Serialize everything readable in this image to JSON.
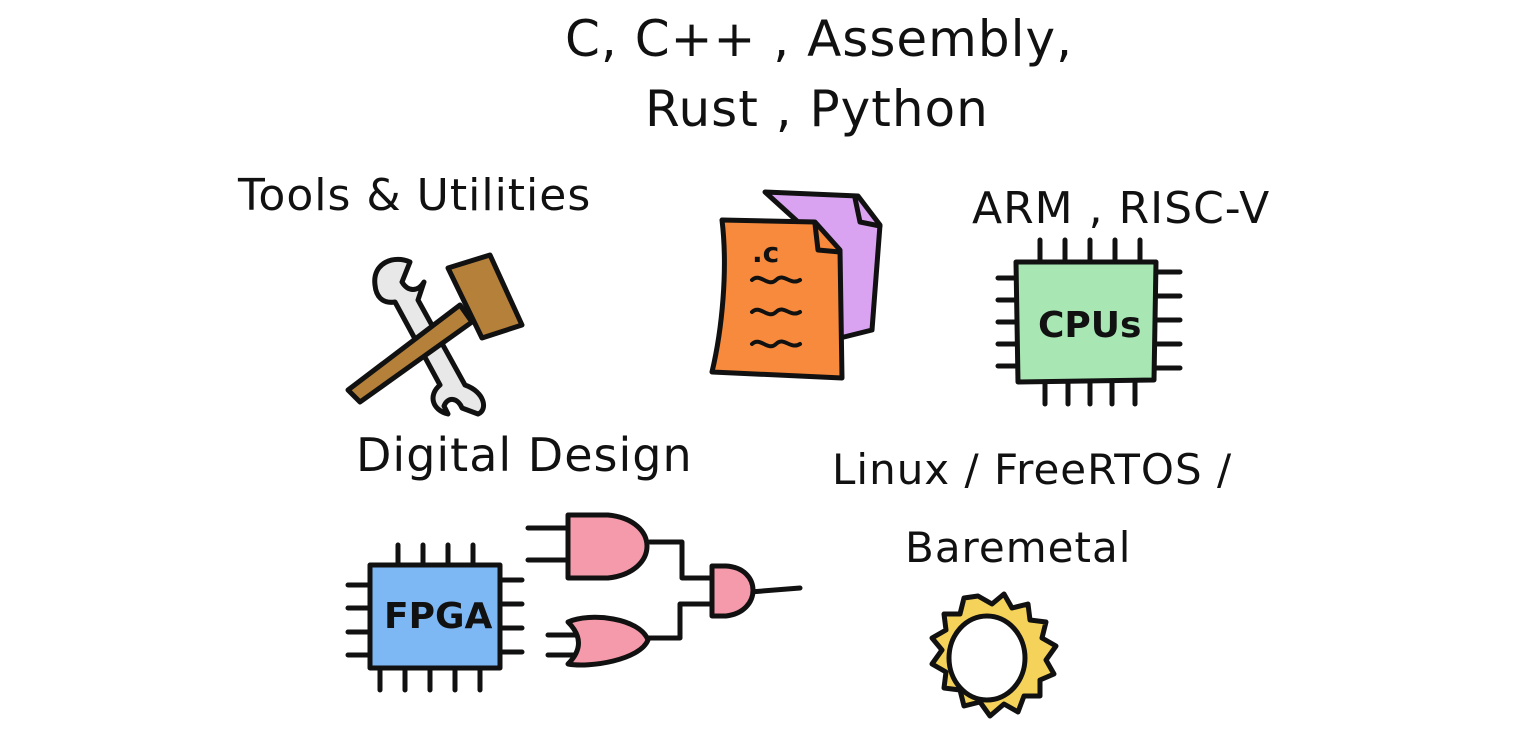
{
  "labels": {
    "languages_line1": "C, C++ , Assembly,",
    "languages_line2": "Rust , Python",
    "tools": "Tools & Utilities",
    "architectures": "ARM , RISC-V",
    "digital_design": "Digital Design",
    "os_line1": "Linux / FreeRTOS /",
    "os_line2": "Baremetal"
  },
  "icons": {
    "tools": "hammer-wrench-icon",
    "source_files": "source-files-icon",
    "source_file_ext": ".c",
    "cpu": "cpu-chip-icon",
    "cpu_label": "CPUs",
    "fpga": "fpga-chip-icon",
    "fpga_label": "FPGA",
    "logic_gates": "logic-gates-icon",
    "os": "sun-ring-icon"
  },
  "colors": {
    "hammer": "#b5813a",
    "wrench": "#e8e8e8",
    "file_front": "#f78a3c",
    "file_back": "#d9a3f2",
    "cpu": "#a8e6b4",
    "fpga": "#7db8f5",
    "gates": "#f59aaa",
    "sun": "#f5d35a"
  }
}
